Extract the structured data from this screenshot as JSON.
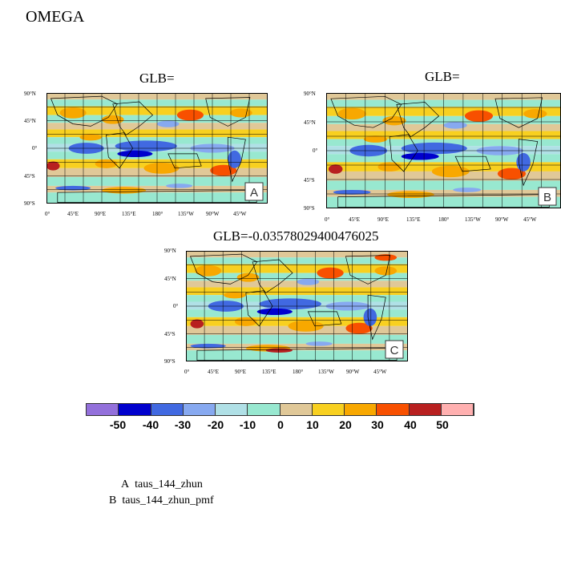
{
  "page_title": "OMEGA",
  "panels": [
    {
      "id": "A",
      "glb": "GLB=",
      "letter": "A"
    },
    {
      "id": "B",
      "glb": "GLB=",
      "letter": "B"
    },
    {
      "id": "C",
      "glb": "GLB=-0.03578029400476025",
      "letter": "C"
    }
  ],
  "lat_ticks": [
    "90°N",
    "45°N",
    "0°",
    "45°S",
    "90°S"
  ],
  "lon_ticks": [
    "0°",
    "45°E",
    "90°E",
    "135°E",
    "180°",
    "135°W",
    "90°W",
    "45°W"
  ],
  "colorbar": {
    "labels": [
      "-50",
      "-40",
      "-30",
      "-20",
      "-10",
      "0",
      "10",
      "20",
      "30",
      "40",
      "50"
    ],
    "colors": [
      "#9370db",
      "#0000cd",
      "#4169e1",
      "#87a9f0",
      "#b0e0e6",
      "#98e8d0",
      "#e0c898",
      "#f8d020",
      "#f8a800",
      "#f85000",
      "#b82020",
      "#ffb0b0"
    ]
  },
  "legend": [
    {
      "letter": "A",
      "name": "taus_144_zhun"
    },
    {
      "letter": "B",
      "name": "taus_144_zhun_pmf"
    }
  ]
}
